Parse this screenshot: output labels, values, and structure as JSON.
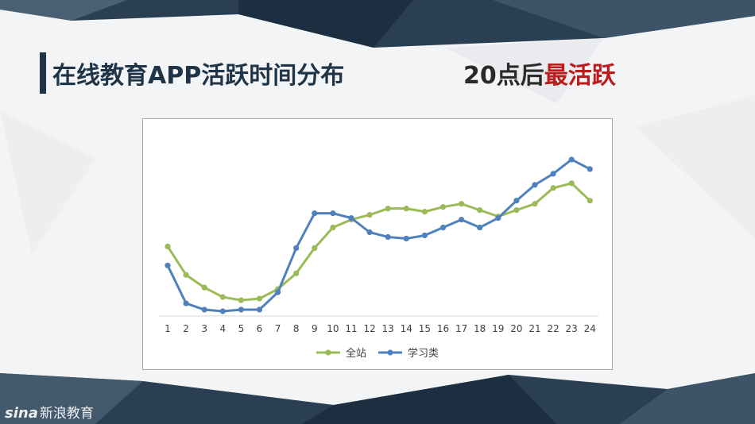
{
  "slide": {
    "title": "在线教育APP活跃时间分布",
    "headline_prefix": "20点后",
    "headline_highlight": "最活跃"
  },
  "watermark": {
    "logo": "sina",
    "text": "新浪教育"
  },
  "colors": {
    "series1": "#9bbb59",
    "series2": "#4f81bd",
    "highlight": "#b81c1c",
    "dark": "#1f3447"
  },
  "chart_data": {
    "type": "line",
    "title": "",
    "xlabel": "",
    "ylabel": "",
    "x": [
      1,
      2,
      3,
      4,
      5,
      6,
      7,
      8,
      9,
      10,
      11,
      12,
      13,
      14,
      15,
      16,
      17,
      18,
      19,
      20,
      21,
      22,
      23,
      24
    ],
    "ylim": [
      0,
      100
    ],
    "grid": false,
    "legend": "bottom",
    "series": [
      {
        "name": "全站",
        "color": "#9bbb59",
        "values": [
          41,
          23,
          15,
          9,
          7,
          8,
          14,
          24,
          40,
          53,
          58,
          61,
          65,
          65,
          63,
          66,
          68,
          64,
          60,
          64,
          68,
          78,
          81,
          70
        ]
      },
      {
        "name": "学习类",
        "color": "#4f81bd",
        "values": [
          29,
          5,
          1,
          0,
          1,
          1,
          12,
          40,
          62,
          62,
          59,
          50,
          47,
          46,
          48,
          53,
          58,
          53,
          59,
          70,
          80,
          87,
          96,
          90
        ]
      }
    ]
  }
}
